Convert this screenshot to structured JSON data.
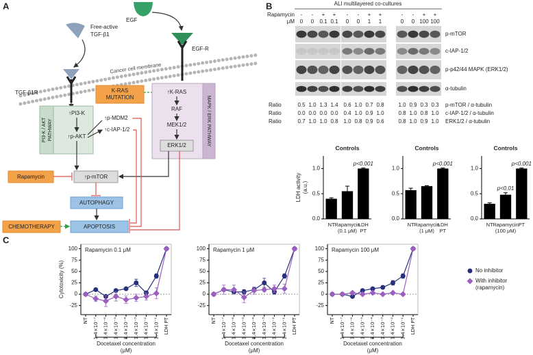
{
  "panel_labels": {
    "a": "A",
    "b": "B",
    "c": "C"
  },
  "diagram": {
    "tgf_ligand": [
      "Free-active",
      "TGF-β1"
    ],
    "egf": "EGF",
    "tgf_receptor": "TGF-β1R",
    "egf_receptor": "EGF-R",
    "membrane": "Cancer cell membrane",
    "kras_mutation": [
      "K-RAS",
      "MUTATION"
    ],
    "pi3k_pathway": [
      "PI3-K / AKT",
      "PATHWAY"
    ],
    "mapk_pathway": "MAPK / ERK PATHWAY",
    "pi3k": "↑PI3-K",
    "akt": "↑p-AKT",
    "mdm2": "↑p-MDM2",
    "ciap": "↑c-IAP-1/2",
    "kras": "↑K-RAS",
    "raf": "RAF",
    "mek": "MEK1/2",
    "erk": "ERK1/2",
    "mtor": "↑p-mTOR",
    "rapamycin": "Rapamycin",
    "autophagy": "AUTOPHAGY",
    "chemotherapy": "CHEMOTHERAPY",
    "apoptosis": "APOPTOSIS"
  },
  "blot": {
    "title": "ALI multilayered co-cultures",
    "treatment_label": "Rapamycin",
    "dose_label": "μM",
    "treatment": [
      "-",
      "-",
      "+",
      "+",
      "-",
      "-",
      "+",
      "+",
      "-",
      "-",
      "+",
      "+"
    ],
    "dose": [
      "0",
      "0",
      "0.1",
      "0.1",
      "0",
      "0",
      "1",
      "1",
      "0",
      "0",
      "100",
      "100"
    ],
    "bands": [
      "p-mTOR",
      "c-IAP-1/2",
      "p-p42/44 MAPK (ERK1/2)",
      "α-tubulin"
    ],
    "ratio_label": "Ratio",
    "ratios": [
      {
        "label": "p-mTOR / α-tubulin",
        "values": [
          "0.5",
          "1.0",
          "1.3",
          "1.4",
          "0.6",
          "1.0",
          "0.7",
          "0.8",
          "1.0",
          "0.9",
          "0.3",
          "0.3"
        ]
      },
      {
        "label": "c-IAP-1/2 / α-tubulin",
        "values": [
          "0.0",
          "0.0",
          "0.0",
          "0.0",
          "0.4",
          "1.0",
          "0.9",
          "1.0",
          "0.8",
          "1.0",
          "0.8",
          "1.0"
        ]
      },
      {
        "label": "ERK1/2 / α-tubulin",
        "values": [
          "0.7",
          "1.0",
          "1.0",
          "0.8",
          "1.0",
          "0.8",
          "0.9",
          "0.6",
          "0.8",
          "1.0",
          "0.9",
          "1.0"
        ]
      }
    ]
  },
  "chart_data": [
    {
      "type": "bar",
      "title": "Controls",
      "y_label": [
        "LDH activity",
        "(a.u.)"
      ],
      "categories": [
        [
          "NT"
        ],
        [
          "Rapamycin",
          "(0.1 μM)"
        ],
        [
          "LDH",
          "PT"
        ]
      ],
      "values": [
        0.4,
        0.55,
        1.0
      ],
      "errors": [
        0.02,
        0.1,
        0.01
      ],
      "value_annotations": [
        null,
        null,
        "p<0.001"
      ],
      "color": "#000000",
      "ylim": [
        0,
        1.25
      ],
      "yticks": [
        {
          "value": 0,
          "label": "0.0"
        },
        {
          "value": 0.5,
          "label": "0.5"
        },
        {
          "value": 1,
          "label": "1.0"
        }
      ]
    },
    {
      "type": "bar",
      "title": "Controls",
      "categories": [
        [
          "NT"
        ],
        [
          "Rapamycin",
          "(1 μM)"
        ],
        [
          "LDH",
          "PT"
        ]
      ],
      "values": [
        0.57,
        0.65,
        1.0
      ],
      "errors": [
        0.04,
        0.01,
        0.01
      ],
      "value_annotations": [
        null,
        null,
        "p<0.001"
      ],
      "color": "#000000",
      "ylim": [
        0,
        1.25
      ],
      "yticks": [
        {
          "value": 0,
          "label": "0.0"
        },
        {
          "value": 0.5,
          "label": "0.5"
        },
        {
          "value": 1,
          "label": "1.0"
        }
      ]
    },
    {
      "type": "bar",
      "title": "Controls",
      "categories": [
        [
          "NT"
        ],
        [
          "Rapamycin",
          "(100 μM)"
        ],
        [
          "PT"
        ]
      ],
      "values": [
        0.3,
        0.48,
        1.0
      ],
      "errors": [
        0.02,
        0.04,
        0.01
      ],
      "value_annotations": [
        null,
        "p<0.01",
        "p<0.001"
      ],
      "color": "#000000",
      "ylim": [
        0,
        1.25
      ],
      "yticks": [
        {
          "value": 0,
          "label": "0.0"
        },
        {
          "value": 0.5,
          "label": "0.5"
        },
        {
          "value": 1,
          "label": "1.0"
        }
      ]
    },
    {
      "type": "line",
      "title": "Rapamycin 0.1 μM",
      "y_label": "Cytotoxicity (%)",
      "x_label": [
        "Docetaxel concentration",
        "(μM)"
      ],
      "categories": [
        "NT",
        "1.4×10⁻⁷",
        "1.4×10⁻⁶",
        "1.4×10⁻⁵",
        "1.4×10⁻⁴",
        "1.4×10⁻³",
        "1.4×10⁻²",
        "1.4×10⁻¹",
        "LDH PT"
      ],
      "series": [
        {
          "name": "No inhibitor",
          "color": "#27307a",
          "marker": "circle",
          "values": [
            0,
            10,
            -5,
            8,
            12,
            25,
            3,
            40,
            100
          ],
          "errors": [
            null,
            3,
            null,
            3,
            3,
            8,
            4,
            5,
            null
          ]
        },
        {
          "name": "With inhibitor",
          "color": "#9b5fc0",
          "marker": "diamond",
          "values": [
            0,
            -10,
            -15,
            -5,
            -12,
            -8,
            -5,
            2,
            100
          ],
          "errors": [
            null,
            6,
            12,
            10,
            8,
            8,
            8,
            12,
            null
          ]
        }
      ],
      "ylim": [
        -45,
        110
      ],
      "yticks": [
        -25,
        0,
        25,
        50,
        75,
        100
      ],
      "hline": 0
    },
    {
      "type": "line",
      "title": "Rapamycin 1 μM",
      "x_label": [
        "Docetaxel concentration",
        "(μM)"
      ],
      "categories": [
        "NT",
        "1.4×10⁻⁷",
        "1.4×10⁻⁶",
        "1.4×10⁻⁵",
        "1.4×10⁻⁴",
        "1.4×10⁻³",
        "1.4×10⁻²",
        "1.4×10⁻¹",
        "LDH PT"
      ],
      "series": [
        {
          "name": "No inhibitor",
          "color": "#27307a",
          "marker": "circle",
          "values": [
            0,
            10,
            5,
            5,
            10,
            25,
            5,
            40,
            100
          ],
          "errors": [
            null,
            3,
            3,
            5,
            5,
            10,
            5,
            5,
            null
          ]
        },
        {
          "name": "With inhibitor",
          "color": "#9b5fc0",
          "marker": "diamond",
          "values": [
            0,
            10,
            10,
            -7,
            8,
            10,
            12,
            12,
            100
          ],
          "errors": [
            null,
            10,
            10,
            12,
            8,
            5,
            8,
            10,
            null
          ]
        }
      ],
      "ylim": [
        -45,
        110
      ],
      "yticks": [
        -25,
        0,
        25,
        50,
        75,
        100
      ],
      "hline": 0
    },
    {
      "type": "line",
      "title": "Rapamycin 100 μM",
      "x_label": [
        "Docetaxel concentration",
        "(μM)"
      ],
      "categories": [
        "NT",
        "1.4×10⁻⁷",
        "1.4×10⁻⁶",
        "1.4×10⁻⁵",
        "1.4×10⁻⁴",
        "1.4×10⁻³",
        "1.4×10⁻²",
        "1.4×10⁻¹",
        "LDH PT"
      ],
      "series": [
        {
          "name": "No inhibitor",
          "color": "#27307a",
          "marker": "circle",
          "values": [
            0,
            0,
            -5,
            8,
            12,
            15,
            25,
            40,
            100
          ],
          "errors": [
            null,
            3,
            3,
            3,
            3,
            3,
            5,
            5,
            null
          ]
        },
        {
          "name": "With inhibitor",
          "color": "#9b5fc0",
          "marker": "diamond",
          "values": [
            0,
            0,
            3,
            0,
            3,
            0,
            3,
            0,
            100
          ],
          "errors": [
            null,
            3,
            3,
            3,
            3,
            3,
            3,
            3,
            null
          ]
        }
      ],
      "ylim": [
        -45,
        110
      ],
      "yticks": [
        -25,
        0,
        25,
        50,
        75,
        100
      ],
      "hline": 0,
      "legend": "right",
      "legend_note": "(rapamycin)"
    }
  ]
}
